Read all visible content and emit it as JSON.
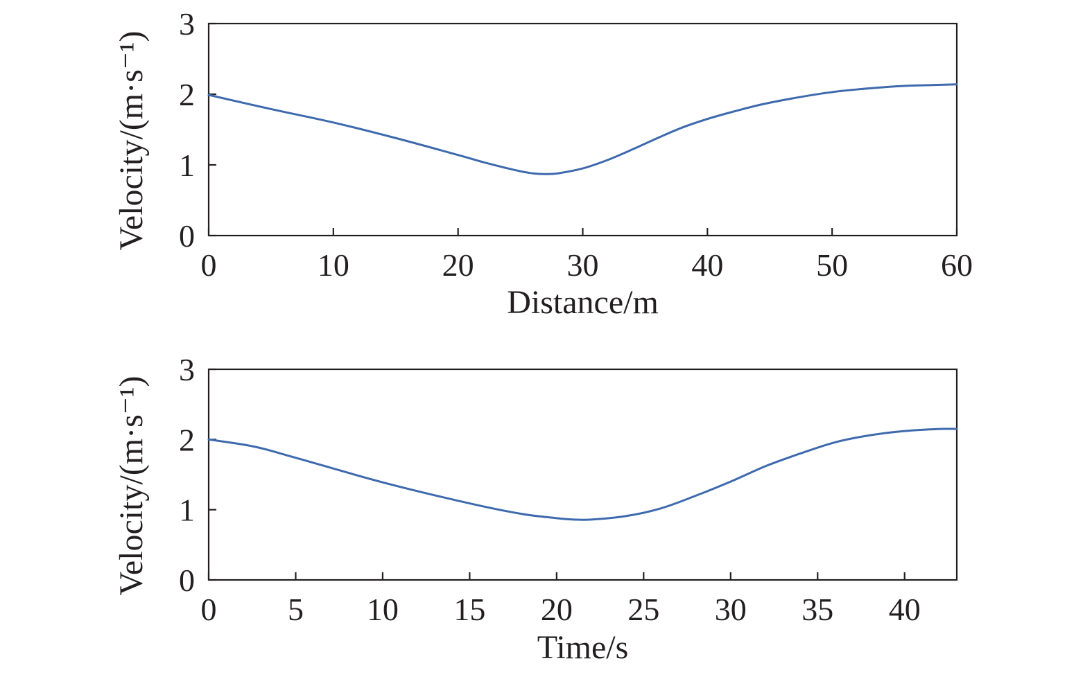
{
  "colors": {
    "line": "#3d69ad",
    "axis": "#231f20"
  },
  "chart_data": [
    {
      "type": "line",
      "xlabel": "Distance/m",
      "ylabel": "Velocity/(m·s⁻¹)",
      "xlim": [
        0,
        60
      ],
      "ylim": [
        0,
        3
      ],
      "xticks": [
        0,
        10,
        20,
        30,
        40,
        50,
        60
      ],
      "yticks": [
        0,
        1,
        2,
        3
      ],
      "grid": false,
      "series": [
        {
          "x": [
            0,
            5,
            10,
            15,
            20,
            22,
            24,
            25,
            26,
            27,
            28,
            30,
            32,
            34,
            36,
            38,
            40,
            42,
            45,
            50,
            55,
            58,
            60
          ],
          "y": [
            1.99,
            1.79,
            1.6,
            1.38,
            1.14,
            1.04,
            0.95,
            0.91,
            0.88,
            0.87,
            0.88,
            0.95,
            1.07,
            1.22,
            1.38,
            1.53,
            1.65,
            1.75,
            1.88,
            2.03,
            2.11,
            2.13,
            2.14
          ]
        }
      ]
    },
    {
      "type": "line",
      "xlabel": "Time/s",
      "ylabel": "Velocity/(m·s⁻¹)",
      "xlim": [
        0,
        43
      ],
      "ylim": [
        0,
        3
      ],
      "xticks": [
        0,
        5,
        10,
        15,
        20,
        25,
        30,
        35,
        40
      ],
      "yticks": [
        0,
        1,
        2,
        3
      ],
      "grid": false,
      "series": [
        {
          "x": [
            0,
            2.6,
            5,
            10,
            15,
            18,
            20,
            21,
            22,
            24,
            26,
            28,
            30,
            32,
            34,
            36,
            38,
            40,
            42,
            43
          ],
          "y": [
            2.0,
            1.9,
            1.74,
            1.39,
            1.09,
            0.94,
            0.88,
            0.86,
            0.86,
            0.91,
            1.02,
            1.2,
            1.4,
            1.62,
            1.8,
            1.96,
            2.06,
            2.12,
            2.15,
            2.15
          ]
        }
      ]
    }
  ]
}
